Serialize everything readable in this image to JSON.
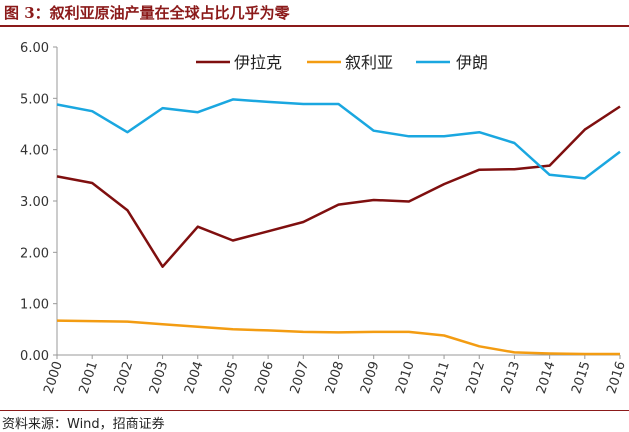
{
  "figure": {
    "title": "图 3：叙利亚原油产量在全球占比几乎为零",
    "source": "资料来源：Wind，招商证券"
  },
  "chart_data": {
    "type": "line",
    "x": [
      "2000",
      "2001",
      "2002",
      "2003",
      "2004",
      "2005",
      "2006",
      "2007",
      "2008",
      "2009",
      "2010",
      "2011",
      "2012",
      "2013",
      "2014",
      "2015",
      "2016"
    ],
    "ylim": [
      0,
      6
    ],
    "yticks": [
      "0.00",
      "1.00",
      "2.00",
      "3.00",
      "4.00",
      "5.00",
      "6.00"
    ],
    "grid": false,
    "legend_position": "top-right",
    "series": [
      {
        "name": "伊拉克",
        "color": "#7f0f0f",
        "values": [
          3.48,
          3.35,
          2.82,
          1.72,
          2.5,
          2.23,
          2.41,
          2.59,
          2.93,
          3.02,
          2.99,
          3.33,
          3.61,
          3.62,
          3.69,
          4.39,
          4.84
        ]
      },
      {
        "name": "叙利亚",
        "color": "#f39c12",
        "values": [
          0.67,
          0.66,
          0.65,
          0.6,
          0.55,
          0.5,
          0.48,
          0.45,
          0.44,
          0.45,
          0.45,
          0.38,
          0.17,
          0.05,
          0.03,
          0.02,
          0.02
        ]
      },
      {
        "name": "伊朗",
        "color": "#1aa7e0",
        "values": [
          4.88,
          4.75,
          4.34,
          4.81,
          4.73,
          4.98,
          4.93,
          4.89,
          4.89,
          4.37,
          4.26,
          4.26,
          4.34,
          4.13,
          3.51,
          3.44,
          3.96
        ]
      }
    ]
  }
}
